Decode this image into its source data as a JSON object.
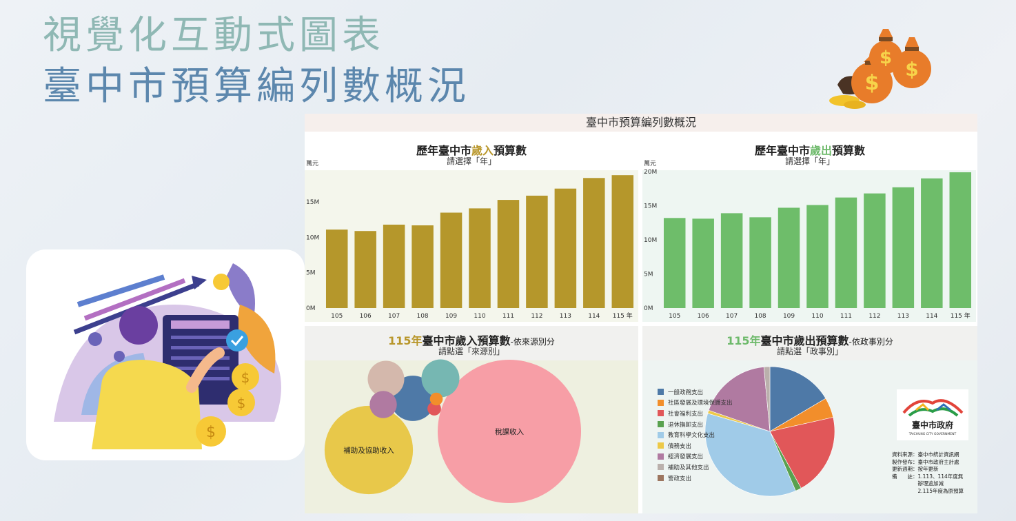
{
  "page": {
    "title_line1": "視覺化互動式圖表",
    "title_line2": "臺中市預算編列數概況"
  },
  "dashboard": {
    "header": "臺中市預算編列數概況",
    "unit_label": "萬元"
  },
  "revenue_panel": {
    "title_prefix": "歷年臺中市",
    "title_highlight": "歲入",
    "title_suffix": "預算數",
    "subtitle": "請選擇「年」"
  },
  "expenditure_panel": {
    "title_prefix": "歷年臺中市",
    "title_highlight": "歲出",
    "title_suffix": "預算數",
    "subtitle": "請選擇「年」"
  },
  "revenue_source_panel": {
    "title_highlight": "115年",
    "title_main": "臺中市歲入預算數",
    "title_small": "-依來源別分",
    "subtitle": "請點選「來源別」"
  },
  "expenditure_func_panel": {
    "title_highlight": "115年",
    "title_main": "臺中市歲出預算數",
    "title_small": "-依政事別分",
    "subtitle": "請點選「政事別」"
  },
  "logo": {
    "name": "臺中市政府",
    "english": "TAICHUNG CITY GOVERNMENT"
  },
  "source_notes": [
    "資料來源：臺中市統計資訊網",
    "製作發布：臺中市政府主計處",
    "更新週期：按年更新",
    "備　　註：1.113、114年度無",
    "　　　　　辦理追加減",
    "　　　　　2.115年度為原預算"
  ],
  "colors": {
    "revenue_bar": "#b5972b",
    "expenditure_bar": "#6ebd6a",
    "revenue_bg": "#f4f6ec",
    "expenditure_bg": "#eef6f2",
    "bubble_bg": "#eef0e0",
    "pie_bg": "#eef4f2"
  },
  "chart_data": [
    {
      "id": "revenue",
      "type": "bar",
      "categories": [
        "105",
        "106",
        "107",
        "108",
        "109",
        "110",
        "111",
        "112",
        "113",
        "114",
        "115 年"
      ],
      "values": [
        11.1,
        10.9,
        11.8,
        11.7,
        13.5,
        14.1,
        15.3,
        15.9,
        16.9,
        18.4,
        18.8
      ],
      "ylabel": "萬元",
      "yticks": [
        "0M",
        "5M",
        "10M",
        "15M"
      ],
      "ytick_values": [
        0,
        5,
        10,
        15
      ],
      "ylim": [
        0,
        19.5
      ],
      "grid": false
    },
    {
      "id": "expenditure",
      "type": "bar",
      "categories": [
        "105",
        "106",
        "107",
        "108",
        "109",
        "110",
        "111",
        "112",
        "113",
        "114",
        "115 年"
      ],
      "values": [
        13.2,
        13.1,
        13.9,
        13.3,
        14.7,
        15.1,
        16.2,
        16.8,
        17.7,
        19.0,
        19.9
      ],
      "ylabel": "萬元",
      "yticks": [
        "0M",
        "5M",
        "10M",
        "15M",
        "20M"
      ],
      "ytick_values": [
        0,
        5,
        10,
        15,
        20
      ],
      "ylim": [
        0,
        20.2
      ],
      "grid": false
    },
    {
      "id": "revenue_sources",
      "type": "bubble",
      "items": [
        {
          "label": "稅課收入",
          "value": 100,
          "color": "#f79ea6"
        },
        {
          "label": "補助及協助收入",
          "value": 38,
          "color": "#e8c84a"
        },
        {
          "label": "",
          "value": 10,
          "color": "#4e79a7"
        },
        {
          "label": "",
          "value": 7,
          "color": "#76b7b2"
        },
        {
          "label": "",
          "value": 6.5,
          "color": "#d4b8ac"
        },
        {
          "label": "",
          "value": 3.6,
          "color": "#b07aa1"
        },
        {
          "label": "",
          "value": 0.9,
          "color": "#e15759"
        },
        {
          "label": "",
          "value": 0.8,
          "color": "#f28e2b"
        }
      ]
    },
    {
      "id": "expenditure_functions",
      "type": "pie",
      "legend_position": "left",
      "slices": [
        {
          "label": "一般政務支出",
          "value": 16.5,
          "color": "#4e79a7"
        },
        {
          "label": "社區發展及環境保護支出",
          "value": 5.0,
          "color": "#f28e2b"
        },
        {
          "label": "社會福利支出",
          "value": 20.5,
          "color": "#e15759"
        },
        {
          "label": "退休撫卹支出",
          "value": 1.5,
          "color": "#59a14f"
        },
        {
          "label": "教育科學文化支出",
          "value": 36.0,
          "color": "#a0cbe8"
        },
        {
          "label": "債務支出",
          "value": 0.8,
          "color": "#edc948"
        },
        {
          "label": "經濟發展支出",
          "value": 18.2,
          "color": "#b07aa1"
        },
        {
          "label": "補助及其他支出",
          "value": 1.5,
          "color": "#bab0ac"
        },
        {
          "label": "警政支出",
          "value": 0,
          "color": "#9c755f"
        }
      ]
    }
  ]
}
